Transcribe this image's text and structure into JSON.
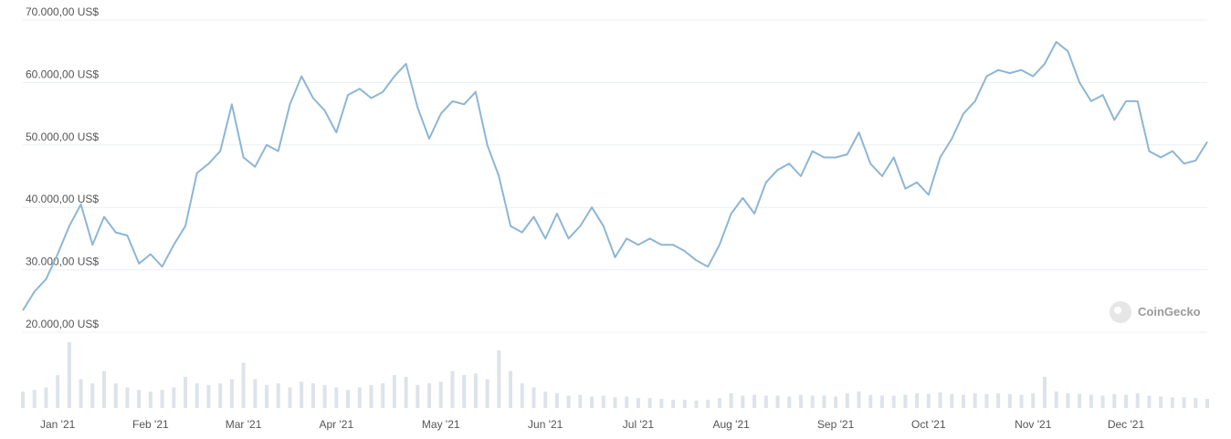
{
  "chart_data": {
    "type": "line",
    "yticks": [
      {
        "value": 70000,
        "label": "70.000,00 US$"
      },
      {
        "value": 60000,
        "label": "60.000,00 US$"
      },
      {
        "value": 50000,
        "label": "50.000,00 US$"
      },
      {
        "value": 40000,
        "label": "40.000,00 US$"
      },
      {
        "value": 30000,
        "label": "30.000,00 US$"
      },
      {
        "value": 20000,
        "label": "20.000,00 US$"
      }
    ],
    "ylim": [
      20000,
      70000
    ],
    "grid": true,
    "watermark": "CoinGecko",
    "categories": [
      null,
      null,
      null,
      "Jan '21",
      null,
      null,
      null,
      null,
      null,
      null,
      null,
      "Feb '21",
      null,
      null,
      null,
      null,
      null,
      null,
      null,
      "Mar '21",
      null,
      null,
      null,
      null,
      null,
      null,
      null,
      "Apr '21",
      null,
      null,
      null,
      null,
      null,
      null,
      null,
      null,
      "May '21",
      null,
      null,
      null,
      null,
      null,
      null,
      null,
      null,
      "Jun '21",
      null,
      null,
      null,
      null,
      null,
      null,
      null,
      "Jul '21",
      null,
      null,
      null,
      null,
      null,
      null,
      null,
      "Aug '21",
      null,
      null,
      null,
      null,
      null,
      null,
      null,
      null,
      "Sep '21",
      null,
      null,
      null,
      null,
      null,
      null,
      null,
      "Oct '21",
      null,
      null,
      null,
      null,
      null,
      null,
      null,
      null,
      "Nov '21",
      null,
      null,
      null,
      null,
      null,
      null,
      null,
      "Dec '21",
      null,
      null,
      null,
      null,
      null,
      null,
      null
    ],
    "series": [
      {
        "color": "#8db6d5",
        "values": [
          23500,
          26500,
          28500,
          32500,
          37000,
          40500,
          34000,
          38500,
          36000,
          35500,
          31000,
          32500,
          30500,
          34000,
          37000,
          45500,
          47000,
          49000,
          56500,
          48000,
          46500,
          50000,
          49000,
          56500,
          61000,
          57500,
          55500,
          52000,
          58000,
          59000,
          57500,
          58500,
          61000,
          63000,
          56000,
          51000,
          55000,
          57000,
          56500,
          58500,
          50000,
          45000,
          37000,
          36000,
          38500,
          35000,
          39000,
          35000,
          37000,
          40000,
          37000,
          32000,
          35000,
          34000,
          35000,
          34000,
          34000,
          33000,
          31500,
          30500,
          34000,
          39000,
          41500,
          39000,
          44000,
          46000,
          47000,
          45000,
          49000,
          48000,
          48000,
          48500,
          52000,
          47000,
          45000,
          48000,
          43000,
          44000,
          42000,
          48000,
          51000,
          55000,
          57000,
          61000,
          62000,
          61500,
          62000,
          61000,
          63000,
          66500,
          65000,
          60000,
          57000,
          58000,
          54000,
          57000,
          57000,
          49000,
          48000,
          49000,
          47000,
          47500,
          50500
        ]
      }
    ],
    "volume": {
      "color": "#dde3ea",
      "values": [
        20,
        22,
        25,
        40,
        80,
        35,
        30,
        45,
        30,
        25,
        22,
        20,
        22,
        25,
        38,
        30,
        28,
        30,
        35,
        55,
        35,
        28,
        30,
        25,
        32,
        30,
        28,
        25,
        22,
        25,
        28,
        30,
        40,
        38,
        28,
        30,
        32,
        45,
        40,
        42,
        35,
        70,
        45,
        30,
        25,
        20,
        18,
        15,
        16,
        14,
        15,
        13,
        14,
        12,
        12,
        11,
        10,
        10,
        9,
        10,
        12,
        18,
        15,
        16,
        15,
        15,
        14,
        16,
        15,
        15,
        14,
        18,
        20,
        16,
        15,
        15,
        16,
        18,
        17,
        19,
        17,
        16,
        18,
        17,
        18,
        17,
        16,
        18,
        38,
        20,
        18,
        17,
        16,
        15,
        17,
        16,
        18,
        15,
        14,
        13,
        13,
        12,
        11
      ]
    }
  }
}
